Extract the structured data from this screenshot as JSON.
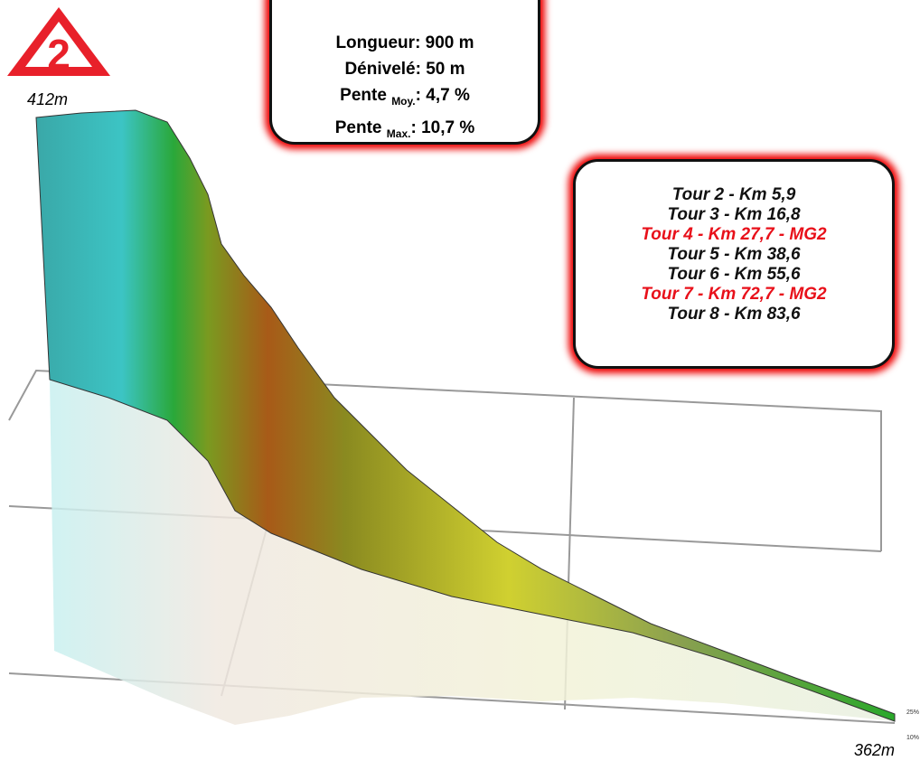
{
  "badge": "2",
  "elevation": {
    "top": "412m",
    "bottom": "362m"
  },
  "stats": [
    {
      "label": "Longueur",
      "value": ": 900 m"
    },
    {
      "label": "Dénivelé",
      "value": ": 50 m"
    },
    {
      "label": "Pente",
      "sub": "Moy.",
      "value": ": 4,7 %"
    },
    {
      "label": "Pente",
      "sub": "Max.",
      "value": ": 10,7 %"
    }
  ],
  "laps": [
    {
      "text": "Tour 2 - Km 5,9",
      "highlight": false
    },
    {
      "text": "Tour 3 - Km 16,8",
      "highlight": false
    },
    {
      "text": "Tour 4 - Km 27,7 - MG2",
      "highlight": true
    },
    {
      "text": "Tour 5 - Km 38,6",
      "highlight": false
    },
    {
      "text": "Tour 6 - Km 55,6",
      "highlight": false
    },
    {
      "text": "Tour 7 - Km 72,7 - MG2",
      "highlight": true
    },
    {
      "text": "Tour 8 - Km 83,6",
      "highlight": false
    }
  ],
  "slope_legend": [
    "25%",
    "10%"
  ]
}
